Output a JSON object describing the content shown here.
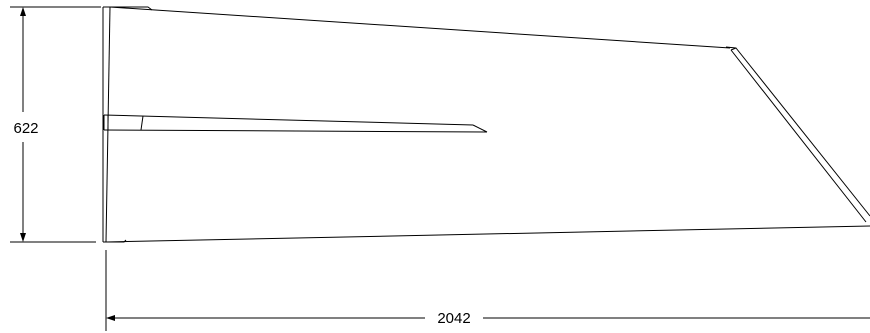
{
  "dimensions": {
    "height_label": "622",
    "width_label": "2042"
  },
  "colors": {
    "line": "#000000",
    "background": "#ffffff"
  }
}
